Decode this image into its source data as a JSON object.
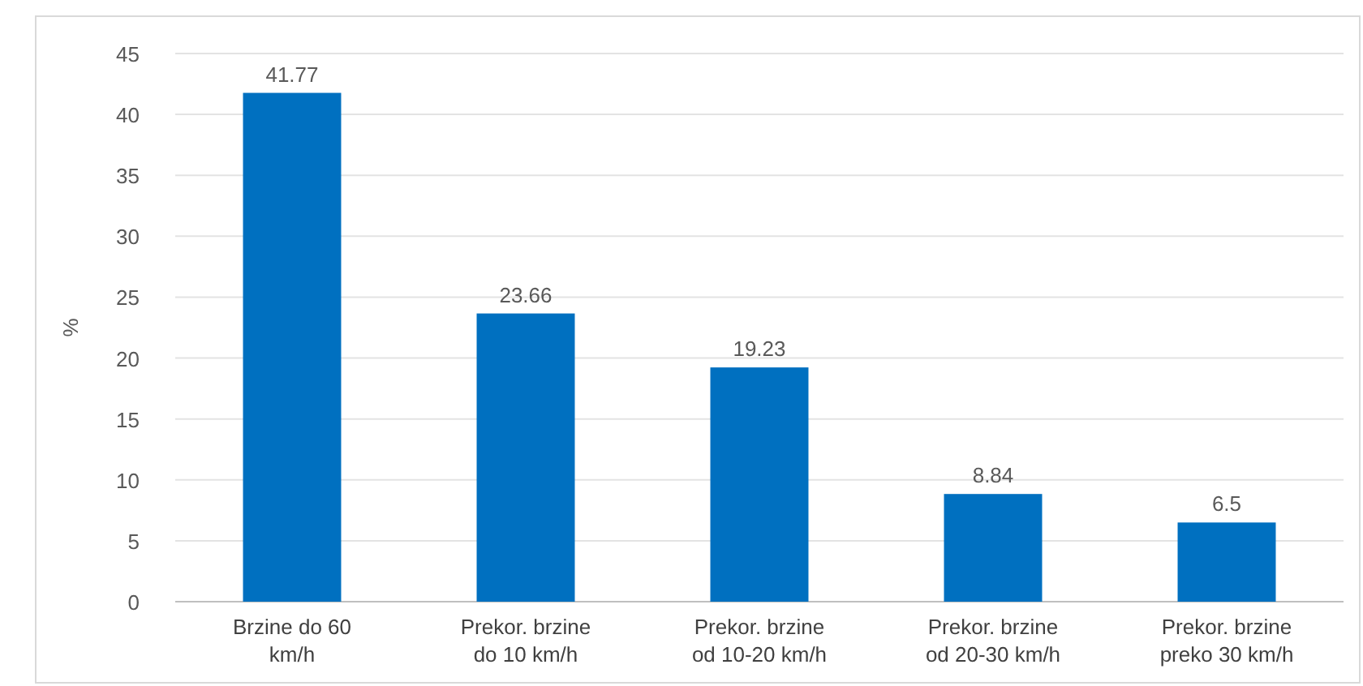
{
  "chart_data": {
    "type": "bar",
    "ylabel": "%",
    "categories": [
      "Brzine do 60 km/h",
      "Prekor. brzine do 10 km/h",
      "Prekor. brzine od 10-20 km/h",
      "Prekor. brzine od 20-30 km/h",
      "Prekor. brzine preko 30 km/h"
    ],
    "values": [
      41.77,
      23.66,
      19.23,
      8.84,
      6.5
    ],
    "color": "#0070c0",
    "ylim": [
      0,
      45
    ],
    "yticks": [
      0,
      5,
      10,
      15,
      20,
      25,
      30,
      35,
      40,
      45
    ],
    "grid": "y",
    "data_labels": true
  }
}
